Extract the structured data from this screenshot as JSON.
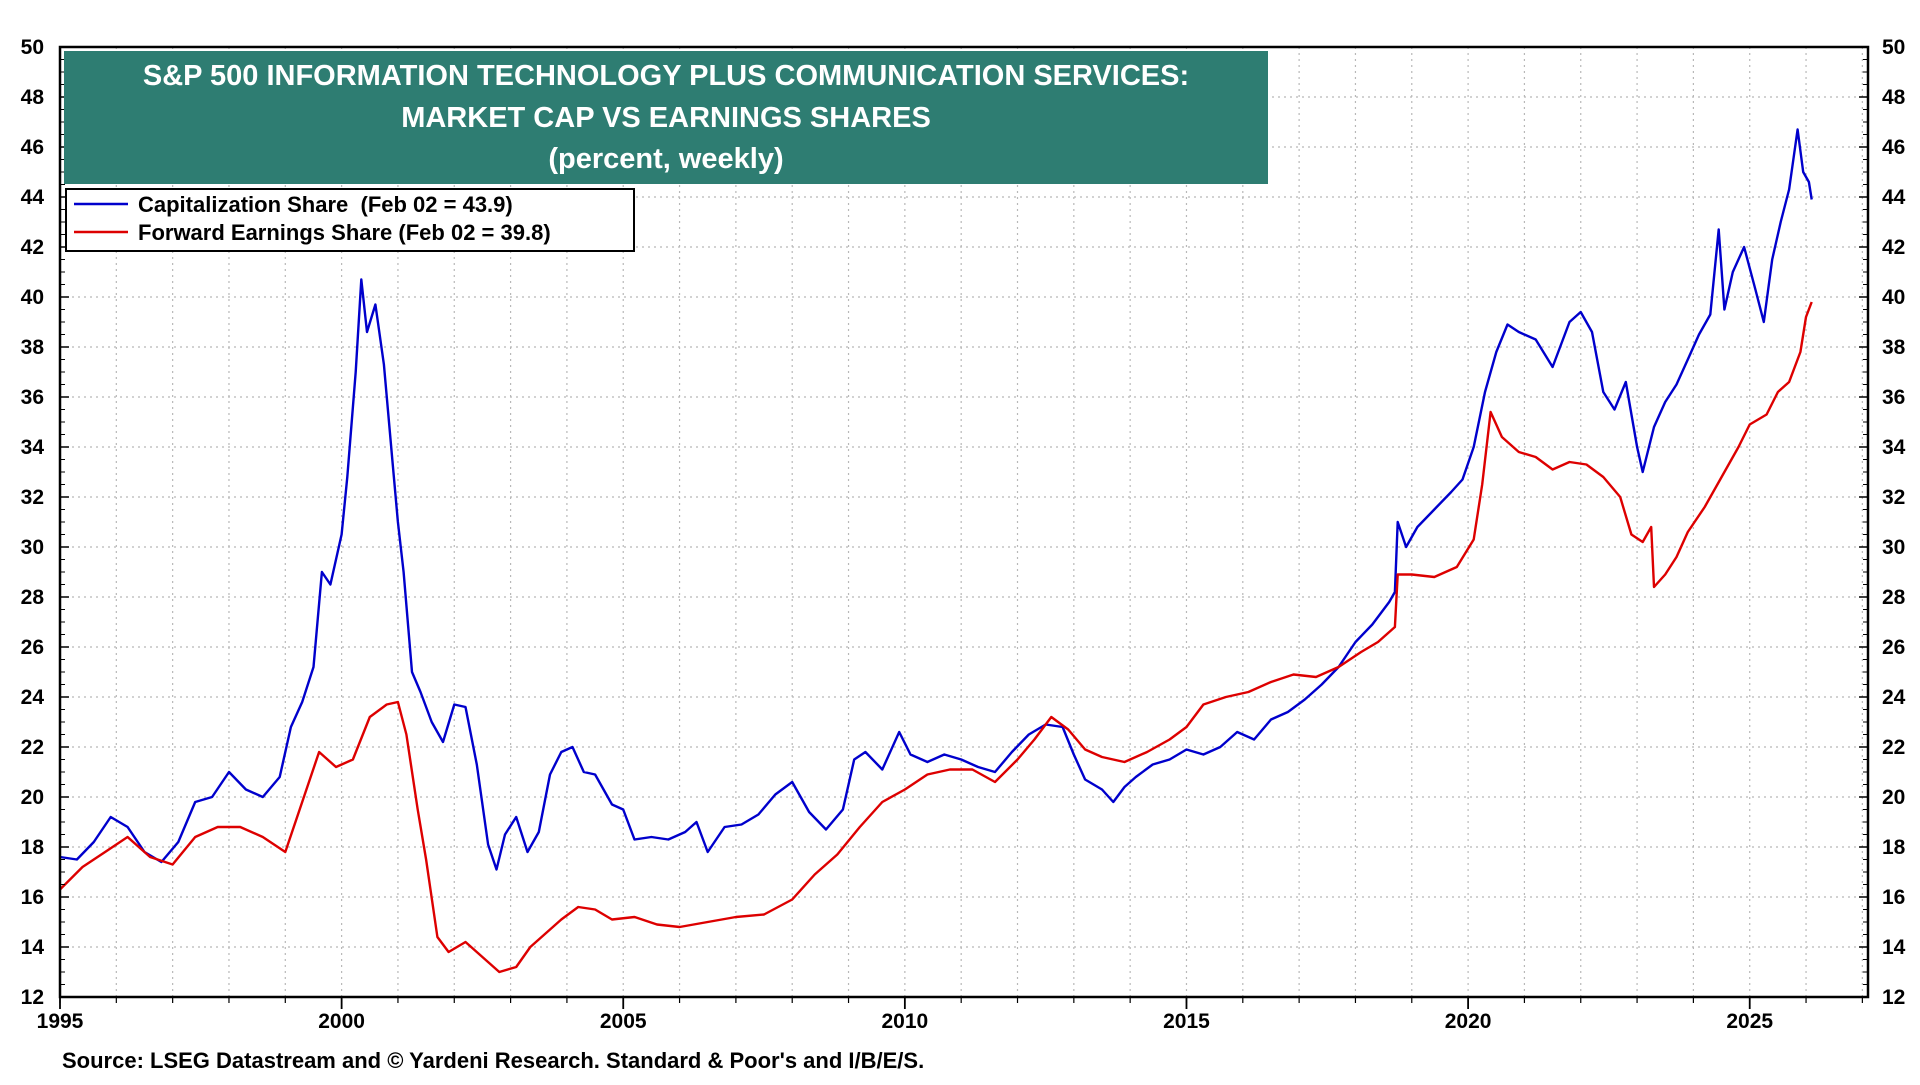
{
  "chart_data": {
    "type": "line",
    "title_lines": [
      "S&P 500 INFORMATION TECHNOLOGY PLUS COMMUNICATION SERVICES:",
      "MARKET CAP VS EARNINGS SHARES",
      "(percent, weekly)"
    ],
    "source": "Source: LSEG Datastream and © Yardeni Research. Standard & Poor's and I/B/E/S.",
    "xlim": [
      1995,
      2027.1
    ],
    "ylim": [
      12,
      50
    ],
    "x_ticks": [
      1995,
      2000,
      2005,
      2010,
      2015,
      2020,
      2025
    ],
    "x_tick_labels": [
      "1995",
      "2000",
      "2005",
      "2010",
      "2015",
      "2020",
      "2025"
    ],
    "y_ticks": [
      12,
      14,
      16,
      18,
      20,
      22,
      24,
      26,
      28,
      30,
      32,
      34,
      36,
      38,
      40,
      42,
      44,
      46,
      48,
      50
    ],
    "y_tick_labels": [
      "12",
      "14",
      "16",
      "18",
      "20",
      "22",
      "24",
      "26",
      "28",
      "30",
      "32",
      "34",
      "36",
      "38",
      "40",
      "42",
      "44",
      "46",
      "48",
      "50"
    ],
    "grid": true,
    "legend_position": "top-left",
    "title_box_color": "#2e7d72",
    "series": [
      {
        "name": "Capitalization Share  (Feb 02 = 43.9)",
        "color": "#0000cc",
        "points": [
          [
            1995.0,
            17.6
          ],
          [
            1995.3,
            17.5
          ],
          [
            1995.6,
            18.2
          ],
          [
            1995.9,
            19.2
          ],
          [
            1996.2,
            18.8
          ],
          [
            1996.5,
            17.8
          ],
          [
            1996.8,
            17.4
          ],
          [
            1997.1,
            18.2
          ],
          [
            1997.4,
            19.8
          ],
          [
            1997.7,
            20.0
          ],
          [
            1998.0,
            21.0
          ],
          [
            1998.3,
            20.3
          ],
          [
            1998.6,
            20.0
          ],
          [
            1998.9,
            20.8
          ],
          [
            1999.1,
            22.8
          ],
          [
            1999.3,
            23.8
          ],
          [
            1999.5,
            25.2
          ],
          [
            1999.65,
            29.0
          ],
          [
            1999.8,
            28.5
          ],
          [
            2000.0,
            30.5
          ],
          [
            2000.1,
            32.8
          ],
          [
            2000.25,
            37.0
          ],
          [
            2000.35,
            40.7
          ],
          [
            2000.45,
            38.6
          ],
          [
            2000.6,
            39.7
          ],
          [
            2000.75,
            37.3
          ],
          [
            2000.9,
            33.5
          ],
          [
            2001.0,
            31.0
          ],
          [
            2001.1,
            29.0
          ],
          [
            2001.25,
            25.0
          ],
          [
            2001.4,
            24.2
          ],
          [
            2001.6,
            23.0
          ],
          [
            2001.8,
            22.2
          ],
          [
            2002.0,
            23.7
          ],
          [
            2002.2,
            23.6
          ],
          [
            2002.4,
            21.3
          ],
          [
            2002.6,
            18.1
          ],
          [
            2002.75,
            17.1
          ],
          [
            2002.9,
            18.5
          ],
          [
            2003.1,
            19.2
          ],
          [
            2003.3,
            17.8
          ],
          [
            2003.5,
            18.6
          ],
          [
            2003.7,
            20.9
          ],
          [
            2003.9,
            21.8
          ],
          [
            2004.1,
            22.0
          ],
          [
            2004.3,
            21.0
          ],
          [
            2004.5,
            20.9
          ],
          [
            2004.8,
            19.7
          ],
          [
            2005.0,
            19.5
          ],
          [
            2005.2,
            18.3
          ],
          [
            2005.5,
            18.4
          ],
          [
            2005.8,
            18.3
          ],
          [
            2006.1,
            18.6
          ],
          [
            2006.3,
            19.0
          ],
          [
            2006.5,
            17.8
          ],
          [
            2006.8,
            18.8
          ],
          [
            2007.1,
            18.9
          ],
          [
            2007.4,
            19.3
          ],
          [
            2007.7,
            20.1
          ],
          [
            2008.0,
            20.6
          ],
          [
            2008.3,
            19.4
          ],
          [
            2008.6,
            18.7
          ],
          [
            2008.9,
            19.5
          ],
          [
            2009.1,
            21.5
          ],
          [
            2009.3,
            21.8
          ],
          [
            2009.6,
            21.1
          ],
          [
            2009.9,
            22.6
          ],
          [
            2010.1,
            21.7
          ],
          [
            2010.4,
            21.4
          ],
          [
            2010.7,
            21.7
          ],
          [
            2011.0,
            21.5
          ],
          [
            2011.3,
            21.2
          ],
          [
            2011.6,
            21.0
          ],
          [
            2011.9,
            21.8
          ],
          [
            2012.2,
            22.5
          ],
          [
            2012.5,
            22.9
          ],
          [
            2012.8,
            22.8
          ],
          [
            2013.0,
            21.7
          ],
          [
            2013.2,
            20.7
          ],
          [
            2013.5,
            20.3
          ],
          [
            2013.7,
            19.8
          ],
          [
            2013.9,
            20.4
          ],
          [
            2014.1,
            20.8
          ],
          [
            2014.4,
            21.3
          ],
          [
            2014.7,
            21.5
          ],
          [
            2015.0,
            21.9
          ],
          [
            2015.3,
            21.7
          ],
          [
            2015.6,
            22.0
          ],
          [
            2015.9,
            22.6
          ],
          [
            2016.2,
            22.3
          ],
          [
            2016.5,
            23.1
          ],
          [
            2016.8,
            23.4
          ],
          [
            2017.1,
            23.9
          ],
          [
            2017.4,
            24.5
          ],
          [
            2017.7,
            25.2
          ],
          [
            2018.0,
            26.2
          ],
          [
            2018.3,
            26.9
          ],
          [
            2018.6,
            27.8
          ],
          [
            2018.7,
            28.2
          ],
          [
            2018.75,
            31.0
          ],
          [
            2018.9,
            30.0
          ],
          [
            2019.1,
            30.8
          ],
          [
            2019.4,
            31.5
          ],
          [
            2019.7,
            32.2
          ],
          [
            2019.9,
            32.7
          ],
          [
            2020.1,
            34.0
          ],
          [
            2020.3,
            36.2
          ],
          [
            2020.5,
            37.8
          ],
          [
            2020.7,
            38.9
          ],
          [
            2020.9,
            38.6
          ],
          [
            2021.2,
            38.3
          ],
          [
            2021.5,
            37.2
          ],
          [
            2021.8,
            39.0
          ],
          [
            2022.0,
            39.4
          ],
          [
            2022.2,
            38.6
          ],
          [
            2022.4,
            36.2
          ],
          [
            2022.6,
            35.5
          ],
          [
            2022.8,
            36.6
          ],
          [
            2023.0,
            34.0
          ],
          [
            2023.1,
            33.0
          ],
          [
            2023.3,
            34.8
          ],
          [
            2023.5,
            35.8
          ],
          [
            2023.7,
            36.5
          ],
          [
            2023.9,
            37.5
          ],
          [
            2024.1,
            38.5
          ],
          [
            2024.3,
            39.3
          ],
          [
            2024.45,
            42.7
          ],
          [
            2024.55,
            39.5
          ],
          [
            2024.7,
            41.0
          ],
          [
            2024.9,
            42.0
          ],
          [
            2025.1,
            40.3
          ],
          [
            2025.25,
            39.0
          ],
          [
            2025.4,
            41.5
          ],
          [
            2025.55,
            43.0
          ],
          [
            2025.7,
            44.3
          ],
          [
            2025.85,
            46.7
          ],
          [
            2025.95,
            45.0
          ],
          [
            2026.05,
            44.6
          ],
          [
            2026.1,
            43.9
          ]
        ]
      },
      {
        "name": "Forward Earnings Share (Feb 02 = 39.8)",
        "color": "#dd0000",
        "points": [
          [
            1995.0,
            16.3
          ],
          [
            1995.4,
            17.2
          ],
          [
            1995.8,
            17.8
          ],
          [
            1996.2,
            18.4
          ],
          [
            1996.6,
            17.6
          ],
          [
            1997.0,
            17.3
          ],
          [
            1997.4,
            18.4
          ],
          [
            1997.8,
            18.8
          ],
          [
            1998.2,
            18.8
          ],
          [
            1998.6,
            18.4
          ],
          [
            1999.0,
            17.8
          ],
          [
            1999.3,
            19.8
          ],
          [
            1999.6,
            21.8
          ],
          [
            1999.9,
            21.2
          ],
          [
            2000.2,
            21.5
          ],
          [
            2000.5,
            23.2
          ],
          [
            2000.8,
            23.7
          ],
          [
            2001.0,
            23.8
          ],
          [
            2001.15,
            22.5
          ],
          [
            2001.35,
            19.5
          ],
          [
            2001.5,
            17.5
          ],
          [
            2001.7,
            14.4
          ],
          [
            2001.9,
            13.8
          ],
          [
            2002.2,
            14.2
          ],
          [
            2002.5,
            13.6
          ],
          [
            2002.8,
            13.0
          ],
          [
            2003.1,
            13.2
          ],
          [
            2003.35,
            14.0
          ],
          [
            2003.6,
            14.5
          ],
          [
            2003.9,
            15.1
          ],
          [
            2004.2,
            15.6
          ],
          [
            2004.5,
            15.5
          ],
          [
            2004.8,
            15.1
          ],
          [
            2005.2,
            15.2
          ],
          [
            2005.6,
            14.9
          ],
          [
            2006.0,
            14.8
          ],
          [
            2006.5,
            15.0
          ],
          [
            2007.0,
            15.2
          ],
          [
            2007.5,
            15.3
          ],
          [
            2008.0,
            15.9
          ],
          [
            2008.4,
            16.9
          ],
          [
            2008.8,
            17.7
          ],
          [
            2009.2,
            18.8
          ],
          [
            2009.6,
            19.8
          ],
          [
            2010.0,
            20.3
          ],
          [
            2010.4,
            20.9
          ],
          [
            2010.8,
            21.1
          ],
          [
            2011.2,
            21.1
          ],
          [
            2011.6,
            20.6
          ],
          [
            2012.0,
            21.5
          ],
          [
            2012.3,
            22.3
          ],
          [
            2012.6,
            23.2
          ],
          [
            2012.9,
            22.7
          ],
          [
            2013.2,
            21.9
          ],
          [
            2013.5,
            21.6
          ],
          [
            2013.9,
            21.4
          ],
          [
            2014.3,
            21.8
          ],
          [
            2014.7,
            22.3
          ],
          [
            2015.0,
            22.8
          ],
          [
            2015.3,
            23.7
          ],
          [
            2015.7,
            24.0
          ],
          [
            2016.1,
            24.2
          ],
          [
            2016.5,
            24.6
          ],
          [
            2016.9,
            24.9
          ],
          [
            2017.3,
            24.8
          ],
          [
            2017.7,
            25.2
          ],
          [
            2018.1,
            25.8
          ],
          [
            2018.4,
            26.2
          ],
          [
            2018.7,
            26.8
          ],
          [
            2018.75,
            28.9
          ],
          [
            2019.0,
            28.9
          ],
          [
            2019.4,
            28.8
          ],
          [
            2019.8,
            29.2
          ],
          [
            2020.1,
            30.3
          ],
          [
            2020.25,
            32.5
          ],
          [
            2020.4,
            35.4
          ],
          [
            2020.6,
            34.4
          ],
          [
            2020.9,
            33.8
          ],
          [
            2021.2,
            33.6
          ],
          [
            2021.5,
            33.1
          ],
          [
            2021.8,
            33.4
          ],
          [
            2022.1,
            33.3
          ],
          [
            2022.4,
            32.8
          ],
          [
            2022.7,
            32.0
          ],
          [
            2022.9,
            30.5
          ],
          [
            2023.1,
            30.2
          ],
          [
            2023.25,
            30.8
          ],
          [
            2023.3,
            28.4
          ],
          [
            2023.5,
            28.9
          ],
          [
            2023.7,
            29.6
          ],
          [
            2023.9,
            30.6
          ],
          [
            2024.2,
            31.6
          ],
          [
            2024.5,
            32.8
          ],
          [
            2024.8,
            34.0
          ],
          [
            2025.0,
            34.9
          ],
          [
            2025.3,
            35.3
          ],
          [
            2025.5,
            36.2
          ],
          [
            2025.7,
            36.6
          ],
          [
            2025.9,
            37.8
          ],
          [
            2026.0,
            39.2
          ],
          [
            2026.1,
            39.8
          ]
        ]
      }
    ]
  }
}
